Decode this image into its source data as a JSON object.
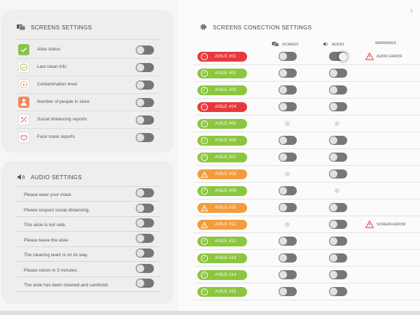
{
  "screens_settings": {
    "title": "SCREENS SETTINGS",
    "items": [
      {
        "label": "Aisle status",
        "icon": "checkmark-icon",
        "color": "#8bc34a"
      },
      {
        "label": "Last clean info",
        "icon": "clean-check-icon",
        "color": "#ffffff"
      },
      {
        "label": "Contamination level",
        "icon": "gauge-icon",
        "color": "#ffffff"
      },
      {
        "label": "Number of people in store",
        "icon": "person-icon",
        "color": "#f08a5d"
      },
      {
        "label": "Social distancing reports",
        "icon": "distancing-icon",
        "color": "#ffffff"
      },
      {
        "label": "Face mask reports",
        "icon": "mask-icon",
        "color": "#ffffff"
      }
    ]
  },
  "audio_settings": {
    "title": "AUDIO SETTINGS",
    "items": [
      {
        "label": "Please wear your mask."
      },
      {
        "label": "Please respect social distancing."
      },
      {
        "label": "This aisle is not safe."
      },
      {
        "label": "Please leave the aisle."
      },
      {
        "label": "The cleaning team is on its way."
      },
      {
        "label": "Please return in 5 minutes."
      },
      {
        "label": "The aisle has been cleaned and sanitized."
      }
    ]
  },
  "connection_settings": {
    "title": "SCREENS CONECTION SETTINGS",
    "columns": {
      "screen": "SCREEN",
      "audio": "AUDIO",
      "warnings": "WARNINGS"
    },
    "colors": {
      "green": "#8cc63f",
      "red": "#e8383d",
      "orange": "#f39c3c"
    },
    "rows": [
      {
        "aisle": "AISLE #01",
        "status": "red",
        "screen": "toggle",
        "audio": "toggle",
        "warning": "AUDIO ERROR"
      },
      {
        "aisle": "AISLE #02",
        "status": "green",
        "screen": "toggle",
        "audio": "toggle",
        "warning": ""
      },
      {
        "aisle": "AISLE #03",
        "status": "green",
        "screen": "toggle",
        "audio": "toggle",
        "warning": ""
      },
      {
        "aisle": "AISLE #04",
        "status": "red",
        "screen": "toggle",
        "audio": "toggle",
        "warning": ""
      },
      {
        "aisle": "AISLE #05",
        "status": "green",
        "screen": "dot",
        "audio": "dot",
        "warning": ""
      },
      {
        "aisle": "AISLE #06",
        "status": "green",
        "screen": "toggle",
        "audio": "toggle",
        "warning": ""
      },
      {
        "aisle": "AISLE #07",
        "status": "green",
        "screen": "toggle",
        "audio": "toggle",
        "warning": ""
      },
      {
        "aisle": "AISLE #08",
        "status": "orange",
        "screen": "dot",
        "audio": "toggle",
        "warning": ""
      },
      {
        "aisle": "AISLE #09",
        "status": "green",
        "screen": "toggle",
        "audio": "dot",
        "warning": ""
      },
      {
        "aisle": "AISLE #10",
        "status": "orange",
        "screen": "toggle",
        "audio": "toggle",
        "warning": ""
      },
      {
        "aisle": "AISLE #11",
        "status": "orange",
        "screen": "dot",
        "audio": "toggle",
        "warning": "SCREEN ERROR"
      },
      {
        "aisle": "AISLE #12",
        "status": "green",
        "screen": "toggle",
        "audio": "toggle",
        "warning": ""
      },
      {
        "aisle": "AISLE #13",
        "status": "green",
        "screen": "toggle",
        "audio": "toggle",
        "warning": ""
      },
      {
        "aisle": "AISLE #14",
        "status": "green",
        "screen": "toggle",
        "audio": "toggle",
        "warning": ""
      },
      {
        "aisle": "AISLE #15",
        "status": "green",
        "screen": "toggle",
        "audio": "toggle",
        "warning": ""
      }
    ]
  }
}
